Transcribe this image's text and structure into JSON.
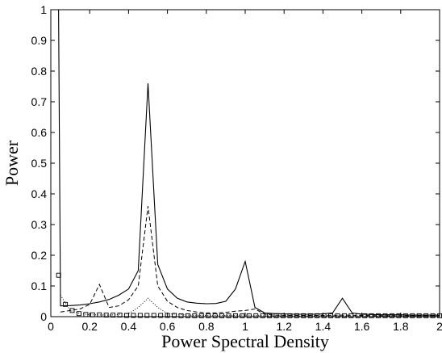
{
  "chart_data": {
    "type": "line",
    "title": "",
    "xlabel": "Power Spectral Density",
    "ylabel": "Power",
    "xlim": [
      0,
      2
    ],
    "ylim": [
      0,
      1
    ],
    "xticks": [
      0,
      0.2,
      0.4,
      0.6,
      0.8,
      1,
      1.2,
      1.4,
      1.6,
      1.8,
      2
    ],
    "xtick_labels": [
      "0",
      "0.2",
      "0.4",
      "0.6",
      "0.8",
      "1",
      "1.2",
      "1.4",
      "1.6",
      "1.8",
      "2"
    ],
    "yticks": [
      0,
      0.1,
      0.2,
      0.3,
      0.4,
      0.5,
      0.6,
      0.7,
      0.8,
      0.9,
      1
    ],
    "ytick_labels": [
      "0",
      "0.1",
      "0.2",
      "0.3",
      "0.4",
      "0.5",
      "0.6",
      "0.7",
      "0.8",
      "0.9",
      "1"
    ],
    "grid": false,
    "legend": "none",
    "series": [
      {
        "style": "solid",
        "color": "#000000",
        "x": [
          0.04,
          0.05,
          0.1,
          0.15,
          0.2,
          0.25,
          0.3,
          0.35,
          0.4,
          0.45,
          0.5,
          0.55,
          0.6,
          0.65,
          0.7,
          0.75,
          0.8,
          0.85,
          0.9,
          0.95,
          1.0,
          1.05,
          1.1,
          1.15,
          1.2,
          1.25,
          1.3,
          1.35,
          1.4,
          1.45,
          1.5,
          1.55,
          1.6,
          1.65,
          1.7,
          1.75,
          1.8,
          1.85,
          1.9,
          1.95,
          2.0
        ],
        "y": [
          1.0,
          0.035,
          0.036,
          0.038,
          0.042,
          0.048,
          0.056,
          0.07,
          0.09,
          0.15,
          0.76,
          0.17,
          0.09,
          0.06,
          0.048,
          0.044,
          0.042,
          0.043,
          0.05,
          0.09,
          0.18,
          0.03,
          0.012,
          0.01,
          0.009,
          0.008,
          0.008,
          0.008,
          0.009,
          0.012,
          0.06,
          0.012,
          0.008,
          0.007,
          0.006,
          0.006,
          0.006,
          0.005,
          0.005,
          0.005,
          0.005
        ]
      },
      {
        "style": "dashed",
        "color": "#000000",
        "x": [
          0.05,
          0.1,
          0.15,
          0.2,
          0.25,
          0.3,
          0.35,
          0.4,
          0.45,
          0.5,
          0.55,
          0.6,
          0.65,
          0.7,
          0.75,
          0.8,
          0.85,
          0.9,
          0.95,
          1.0,
          1.05,
          1.1,
          1.15,
          1.2,
          1.3,
          1.4,
          1.5,
          1.6,
          1.7,
          1.8,
          1.9,
          2.0
        ],
        "y": [
          0.015,
          0.02,
          0.025,
          0.04,
          0.105,
          0.03,
          0.035,
          0.055,
          0.1,
          0.36,
          0.1,
          0.05,
          0.03,
          0.02,
          0.015,
          0.012,
          0.012,
          0.014,
          0.018,
          0.02,
          0.025,
          0.008,
          0.005,
          0.004,
          0.004,
          0.004,
          0.005,
          0.004,
          0.003,
          0.003,
          0.003,
          0.003
        ]
      },
      {
        "style": "dotted",
        "color": "#000000",
        "x": [
          0.05,
          0.1,
          0.15,
          0.2,
          0.3,
          0.4,
          0.45,
          0.5,
          0.55,
          0.6,
          0.7,
          0.8,
          0.9,
          1.0,
          1.1,
          1.2,
          1.4,
          1.6,
          1.8,
          2.0
        ],
        "y": [
          0.07,
          0.02,
          0.01,
          0.006,
          0.005,
          0.01,
          0.03,
          0.06,
          0.03,
          0.01,
          0.005,
          0.004,
          0.004,
          0.005,
          0.003,
          0.002,
          0.002,
          0.002,
          0.002,
          0.002
        ]
      },
      {
        "style": "square-markers",
        "color": "#000000",
        "x": [
          0.04,
          0.075,
          0.11,
          0.145,
          0.18,
          0.215,
          0.25,
          0.285,
          0.32,
          0.355,
          0.39,
          0.425,
          0.46,
          0.495,
          0.53,
          0.565,
          0.6,
          0.635,
          0.67,
          0.705,
          0.74,
          0.775,
          0.81,
          0.845,
          0.88,
          0.915,
          0.95,
          0.985,
          1.02,
          1.055,
          1.09,
          1.125,
          1.16,
          1.195,
          1.23,
          1.265,
          1.3,
          1.335,
          1.37,
          1.405,
          1.44,
          1.475,
          1.51,
          1.545,
          1.58,
          1.615,
          1.65,
          1.685,
          1.72,
          1.755,
          1.79,
          1.825,
          1.86,
          1.895,
          1.93,
          1.965,
          2.0
        ],
        "y": [
          0.135,
          0.04,
          0.02,
          0.01,
          0.007,
          0.006,
          0.006,
          0.005,
          0.005,
          0.005,
          0.004,
          0.004,
          0.004,
          0.004,
          0.004,
          0.004,
          0.004,
          0.004,
          0.003,
          0.003,
          0.003,
          0.003,
          0.003,
          0.003,
          0.003,
          0.003,
          0.003,
          0.003,
          0.003,
          0.003,
          0.003,
          0.003,
          0.003,
          0.003,
          0.003,
          0.003,
          0.003,
          0.003,
          0.003,
          0.003,
          0.003,
          0.003,
          0.003,
          0.003,
          0.003,
          0.003,
          0.003,
          0.003,
          0.003,
          0.003,
          0.003,
          0.003,
          0.003,
          0.003,
          0.003,
          0.003,
          0.003
        ]
      }
    ]
  }
}
